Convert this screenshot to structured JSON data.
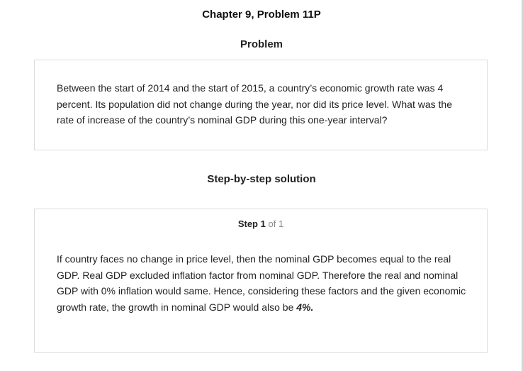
{
  "header": {
    "chapter_title": "Chapter 9, Problem 11P"
  },
  "problem": {
    "heading": "Problem",
    "text": "Between the start of 2014 and the start of 2015, a country’s economic growth rate was 4 percent. Its population did not change during the year, nor did its price level. What was the rate of increase of the country’s nominal GDP during this one-year interval?"
  },
  "solution": {
    "heading": "Step-by-step solution",
    "step": {
      "label": "Step",
      "number": "1",
      "of_text": "of 1"
    },
    "text": "If country faces no change in price level, then the nominal GDP becomes equal to the real GDP. Real GDP excluded inflation factor from nominal GDP. Therefore the real and nominal GDP with 0% inflation would same. Hence, considering these factors and the given economic growth rate, the growth in nominal GDP would also be ",
    "answer": "4%."
  }
}
